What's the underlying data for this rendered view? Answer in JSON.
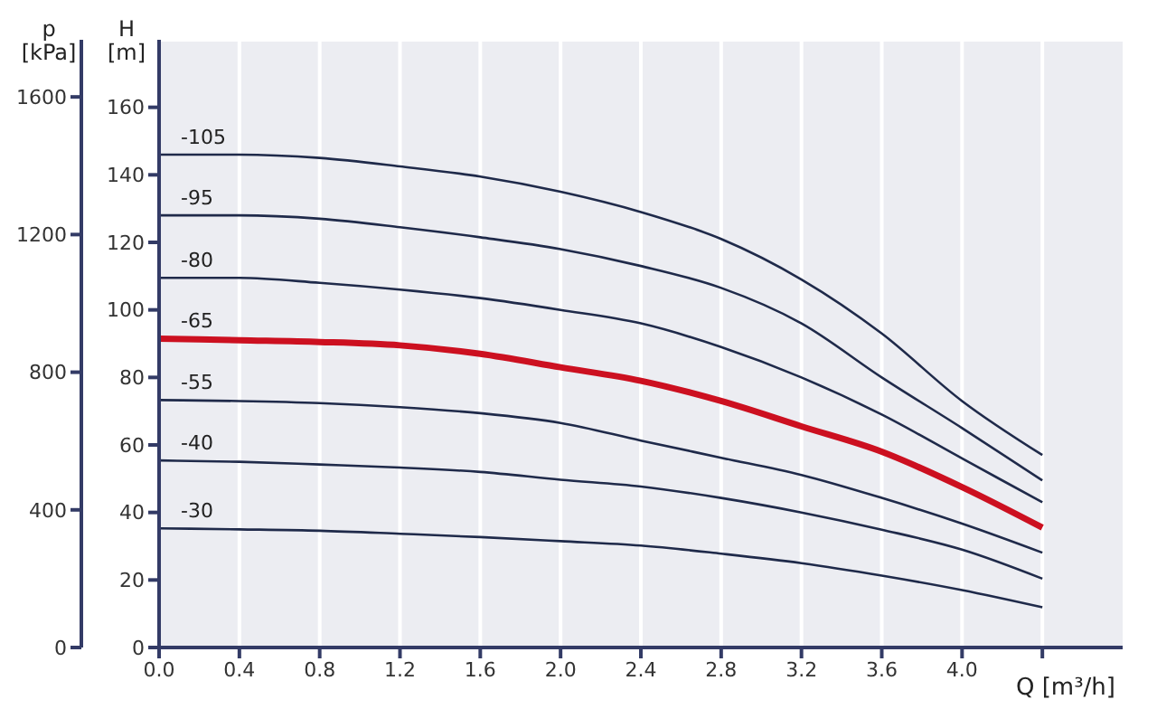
{
  "chart_data": {
    "type": "line",
    "x": [
      0,
      0.4,
      0.8,
      1.2,
      1.6,
      2.0,
      2.4,
      2.8,
      3.2,
      3.6,
      4.0,
      4.4
    ],
    "series": [
      {
        "name": "-105",
        "color": "#1f2a4a",
        "values": [
          146,
          146,
          145,
          142.5,
          139.5,
          135,
          129,
          121,
          109,
          93,
          73,
          57
        ]
      },
      {
        "name": "-95",
        "color": "#1f2a4a",
        "values": [
          128,
          128,
          127,
          124.5,
          121.5,
          118,
          113,
          106.5,
          96,
          80,
          65,
          49.5
        ]
      },
      {
        "name": "-80",
        "color": "#1f2a4a",
        "values": [
          109.5,
          109.5,
          108,
          106,
          103.5,
          100,
          96,
          89,
          80,
          69,
          56,
          43
        ]
      },
      {
        "name": "-65",
        "color": "#cc1020",
        "values": [
          91.5,
          91,
          90.5,
          89.5,
          87,
          83,
          79,
          73,
          65.5,
          58,
          47.5,
          35.5
        ]
      },
      {
        "name": "-55",
        "color": "#1f2a4a",
        "values": [
          73.3,
          73,
          72.4,
          71.2,
          69.4,
          66.5,
          61.3,
          56.2,
          51.1,
          44.3,
          36.7,
          28.1
        ]
      },
      {
        "name": "-40",
        "color": "#1f2a4a",
        "values": [
          55.4,
          55,
          54.2,
          53.3,
          52,
          49.7,
          47.7,
          44.3,
          40,
          34.9,
          29,
          20.4
        ]
      },
      {
        "name": "-30",
        "color": "#1f2a4a",
        "values": [
          35.3,
          35,
          34.6,
          33.7,
          32.7,
          31.5,
          30.2,
          27.8,
          25,
          21.3,
          17,
          11.9
        ]
      }
    ],
    "xlabel": "Q [m³/h]",
    "ylabel": "H [m]",
    "y2label": "p [kPa]",
    "xlim": [
      0,
      4.8
    ],
    "xticks": [
      {
        "value": 0,
        "label": "0.0"
      },
      0.4,
      0.8,
      1.2,
      1.6,
      {
        "value": 2,
        "label": "2.0"
      },
      2.4,
      2.8,
      3.2,
      3.6,
      {
        "value": 4,
        "label": "4.0"
      },
      {
        "value": 4.4,
        "label": null
      }
    ],
    "ylim": [
      0,
      180
    ],
    "yticks": [
      0,
      20,
      40,
      60,
      80,
      100,
      120,
      140,
      160
    ],
    "y2lim": [
      0,
      1766
    ],
    "y2ticks": [
      0,
      400,
      800,
      1200,
      1600
    ],
    "grid": true,
    "marker": "none",
    "line_style": "solid"
  }
}
